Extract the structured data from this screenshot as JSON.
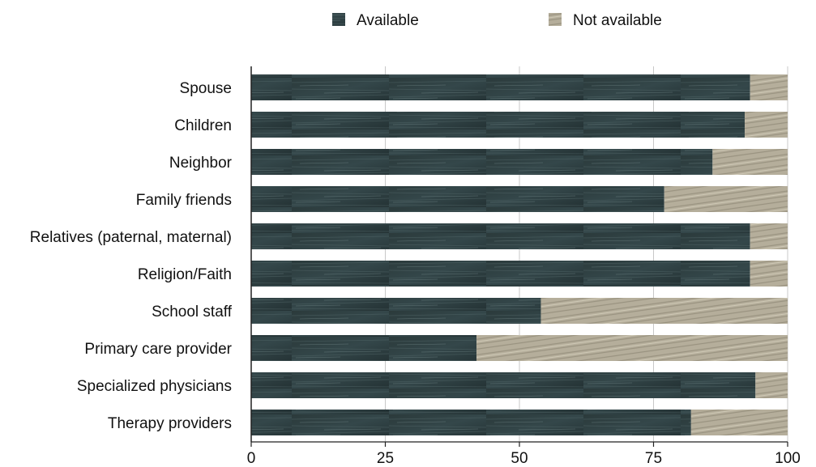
{
  "chart_data": {
    "type": "bar",
    "orientation": "horizontal",
    "stacked": true,
    "categories": [
      "Spouse",
      "Children",
      "Neighbor",
      "Family friends",
      "Relatives (paternal, maternal)",
      "Religion/Faith",
      "School staff",
      "Primary care provider",
      "Specialized physicians",
      "Therapy providers"
    ],
    "series": [
      {
        "name": "Available",
        "values": [
          93,
          92,
          86,
          77,
          93,
          93,
          54,
          42,
          94,
          82
        ],
        "color": "#2f3e3f"
      },
      {
        "name": "Not available",
        "values": [
          7,
          8,
          14,
          23,
          7,
          7,
          46,
          58,
          6,
          18
        ],
        "color": "#b2ab97"
      }
    ],
    "xlim": [
      0,
      100
    ],
    "xticks": [
      0,
      25,
      50,
      75,
      100
    ],
    "grid": "vertical",
    "legend_position": "top"
  }
}
